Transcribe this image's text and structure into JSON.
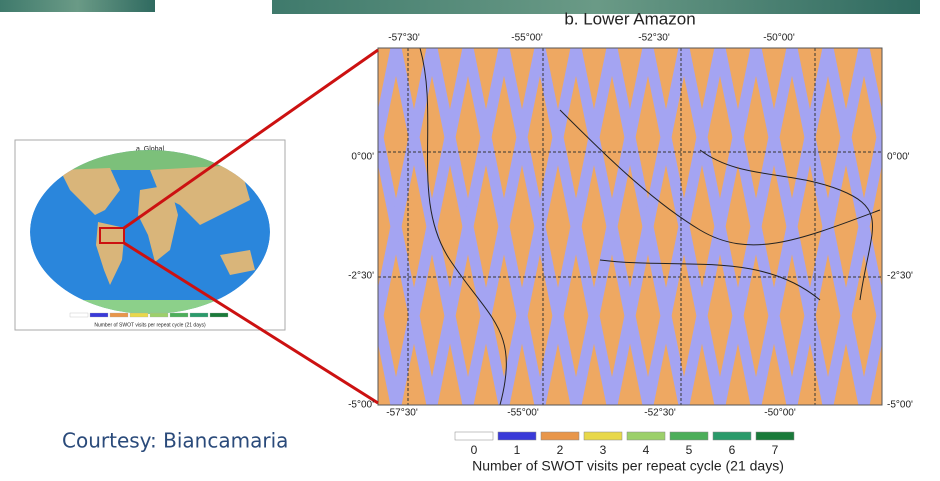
{
  "main_map": {
    "title": "b. Lower Amazon",
    "top_longitudes": [
      "-57°30'",
      "-55°00'",
      "-52°30'",
      "-50°00'"
    ],
    "bottom_longitudes": [
      "-57°30'",
      "-55°00'",
      "-52°30'",
      "-50°00'"
    ],
    "left_latitudes": [
      "0°00'",
      "-2°30'",
      "-5°00'"
    ],
    "right_latitudes": [
      "0°00'",
      "-2°30'",
      "-5°00'"
    ]
  },
  "colorbar": {
    "labels": [
      "0",
      "1",
      "2",
      "3",
      "4",
      "5",
      "6",
      "7"
    ],
    "title": "Number of SWOT visits per repeat cycle (21 days)"
  },
  "inset_map": {
    "title": "a. Global",
    "caption": "Number of SWOT visits per repeat cycle (21 days)"
  },
  "credit": "Courtesy: Biancamaria"
}
